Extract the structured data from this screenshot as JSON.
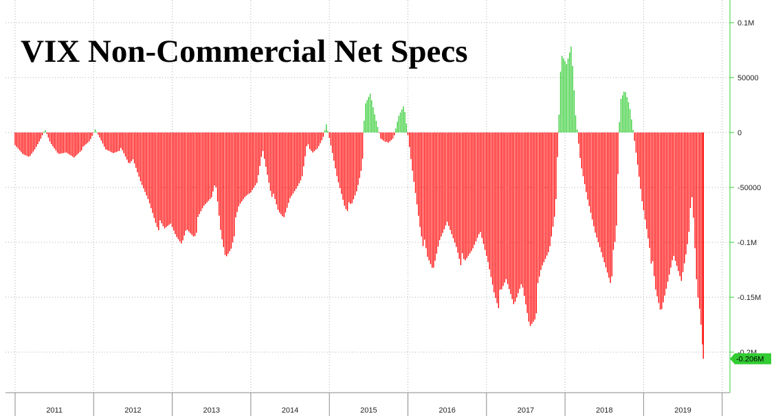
{
  "chart_data": {
    "type": "bar",
    "title": "VIX Non-Commercial Net Specs",
    "xlabel": "",
    "ylabel": "",
    "x_tick_labels": [
      "2011",
      "2012",
      "2013",
      "2014",
      "2015",
      "2016",
      "2017",
      "2018",
      "2019"
    ],
    "y_tick_labels": [
      "0.1M",
      "50000",
      "0",
      "-50000",
      "-0.1M",
      "-0.15M",
      "-0.2M"
    ],
    "y_ticks": [
      100000,
      50000,
      0,
      -50000,
      -100000,
      -150000,
      -200000
    ],
    "ylim": [
      -235000,
      115000
    ],
    "x_start_year": 2011.0,
    "x_end_year": 2019.8,
    "grid": true,
    "positive_color": "#33cc33",
    "negative_color": "#ff0000",
    "last_value_label": "-0.206M",
    "last_value": -206000,
    "anchors": [
      [
        2011.0,
        -12000
      ],
      [
        2011.1,
        -20000
      ],
      [
        2011.18,
        -22000
      ],
      [
        2011.25,
        -15000
      ],
      [
        2011.33,
        -5000
      ],
      [
        2011.38,
        3000
      ],
      [
        2011.45,
        -10000
      ],
      [
        2011.55,
        -20000
      ],
      [
        2011.65,
        -18000
      ],
      [
        2011.75,
        -22000
      ],
      [
        2011.85,
        -15000
      ],
      [
        2011.95,
        -8000
      ],
      [
        2012.02,
        3000
      ],
      [
        2012.08,
        -5000
      ],
      [
        2012.15,
        -15000
      ],
      [
        2012.25,
        -18000
      ],
      [
        2012.35,
        -15000
      ],
      [
        2012.45,
        -30000
      ],
      [
        2012.5,
        -25000
      ],
      [
        2012.6,
        -45000
      ],
      [
        2012.7,
        -60000
      ],
      [
        2012.8,
        -80000
      ],
      [
        2012.9,
        -92000
      ],
      [
        2012.98,
        -85000
      ],
      [
        2013.05,
        -95000
      ],
      [
        2013.12,
        -100000
      ],
      [
        2013.18,
        -85000
      ],
      [
        2013.28,
        -90000
      ],
      [
        2013.4,
        -70000
      ],
      [
        2013.5,
        -60000
      ],
      [
        2013.55,
        -45000
      ],
      [
        2013.62,
        -90000
      ],
      [
        2013.68,
        -110000
      ],
      [
        2013.75,
        -100000
      ],
      [
        2013.85,
        -70000
      ],
      [
        2013.93,
        -60000
      ],
      [
        2014.0,
        -55000
      ],
      [
        2014.08,
        -45000
      ],
      [
        2014.15,
        -15000
      ],
      [
        2014.25,
        -50000
      ],
      [
        2014.35,
        -75000
      ],
      [
        2014.42,
        -80000
      ],
      [
        2014.5,
        -60000
      ],
      [
        2014.58,
        -50000
      ],
      [
        2014.65,
        -40000
      ],
      [
        2014.72,
        -8000
      ],
      [
        2014.78,
        -20000
      ],
      [
        2014.85,
        -15000
      ],
      [
        2014.92,
        -5000
      ],
      [
        2014.96,
        8000
      ],
      [
        2015.0,
        -5000
      ],
      [
        2015.1,
        -40000
      ],
      [
        2015.2,
        -65000
      ],
      [
        2015.28,
        -70000
      ],
      [
        2015.35,
        -55000
      ],
      [
        2015.42,
        -30000
      ],
      [
        2015.45,
        25000
      ],
      [
        2015.52,
        35000
      ],
      [
        2015.58,
        15000
      ],
      [
        2015.65,
        -5000
      ],
      [
        2015.75,
        -10000
      ],
      [
        2015.82,
        -5000
      ],
      [
        2015.88,
        15000
      ],
      [
        2015.95,
        25000
      ],
      [
        2016.05,
        -30000
      ],
      [
        2016.15,
        -80000
      ],
      [
        2016.25,
        -120000
      ],
      [
        2016.32,
        -130000
      ],
      [
        2016.4,
        -100000
      ],
      [
        2016.5,
        -80000
      ],
      [
        2016.62,
        -100000
      ],
      [
        2016.72,
        -125000
      ],
      [
        2016.82,
        -110000
      ],
      [
        2016.92,
        -90000
      ],
      [
        2017.02,
        -115000
      ],
      [
        2017.1,
        -140000
      ],
      [
        2017.18,
        -155000
      ],
      [
        2017.25,
        -140000
      ],
      [
        2017.35,
        -160000
      ],
      [
        2017.45,
        -135000
      ],
      [
        2017.55,
        -170000
      ],
      [
        2017.62,
        -160000
      ],
      [
        2017.7,
        -130000
      ],
      [
        2017.8,
        -110000
      ],
      [
        2017.88,
        -70000
      ],
      [
        2017.95,
        70000
      ],
      [
        2018.02,
        60000
      ],
      [
        2018.08,
        75000
      ],
      [
        2018.13,
        20000
      ],
      [
        2018.2,
        -30000
      ],
      [
        2018.28,
        -60000
      ],
      [
        2018.38,
        -90000
      ],
      [
        2018.48,
        -110000
      ],
      [
        2018.58,
        -130000
      ],
      [
        2018.65,
        -100000
      ],
      [
        2018.7,
        30000
      ],
      [
        2018.76,
        40000
      ],
      [
        2018.82,
        25000
      ],
      [
        2018.88,
        -5000
      ],
      [
        2018.98,
        -60000
      ],
      [
        2019.08,
        -100000
      ],
      [
        2019.15,
        -150000
      ],
      [
        2019.22,
        -170000
      ],
      [
        2019.3,
        -140000
      ],
      [
        2019.38,
        -110000
      ],
      [
        2019.48,
        -130000
      ],
      [
        2019.55,
        -100000
      ],
      [
        2019.62,
        -60000
      ],
      [
        2019.68,
        -150000
      ],
      [
        2019.72,
        -170000
      ],
      [
        2019.76,
        -206000
      ]
    ]
  }
}
